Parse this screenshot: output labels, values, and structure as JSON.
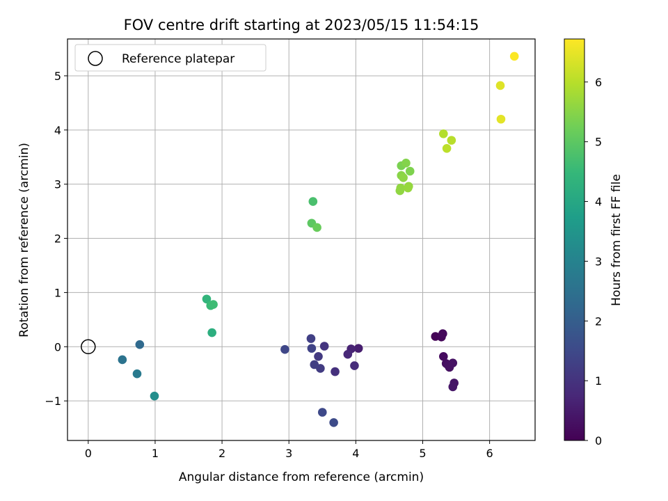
{
  "chart_data": {
    "type": "scatter",
    "title": "FOV centre drift starting at 2023/05/15 11:54:15",
    "xlabel": "Angular distance from reference (arcmin)",
    "ylabel": "Rotation from reference (arcmin)",
    "xlim": [
      -0.31,
      6.68
    ],
    "ylim": [
      -1.73,
      5.68
    ],
    "xticks": [
      0,
      1,
      2,
      3,
      4,
      5,
      6
    ],
    "yticks": [
      -1,
      0,
      1,
      2,
      3,
      4,
      5
    ],
    "ytick_labels": [
      "−1",
      "0",
      "1",
      "2",
      "3",
      "4",
      "5"
    ],
    "grid": true,
    "legend": {
      "position": "top-left",
      "entries": [
        "Reference platepar"
      ]
    },
    "reference_point": {
      "x": 0,
      "y": 0
    },
    "colorbar": {
      "label": "Hours from first FF file",
      "range": [
        0,
        6.72
      ],
      "ticks": [
        0,
        1,
        2,
        3,
        4,
        5,
        6
      ],
      "colormap": "viridis"
    },
    "points": [
      {
        "x": 5.19,
        "y": 0.19,
        "hours": 0.05
      },
      {
        "x": 5.28,
        "y": 0.18,
        "hours": 0.1
      },
      {
        "x": 5.3,
        "y": 0.24,
        "hours": 0.15
      },
      {
        "x": 5.31,
        "y": -0.18,
        "hours": 0.2
      },
      {
        "x": 5.35,
        "y": -0.31,
        "hours": 0.25
      },
      {
        "x": 5.38,
        "y": -0.34,
        "hours": 0.28
      },
      {
        "x": 5.4,
        "y": -0.38,
        "hours": 0.3
      },
      {
        "x": 5.45,
        "y": -0.3,
        "hours": 0.33
      },
      {
        "x": 5.47,
        "y": -0.67,
        "hours": 0.38
      },
      {
        "x": 5.45,
        "y": -0.74,
        "hours": 0.4
      },
      {
        "x": 4.04,
        "y": -0.03,
        "hours": 0.55
      },
      {
        "x": 3.93,
        "y": -0.04,
        "hours": 0.65
      },
      {
        "x": 3.88,
        "y": -0.14,
        "hours": 0.75
      },
      {
        "x": 3.98,
        "y": -0.35,
        "hours": 0.85
      },
      {
        "x": 3.69,
        "y": -0.46,
        "hours": 0.95
      },
      {
        "x": 3.53,
        "y": 0.01,
        "hours": 1.05
      },
      {
        "x": 3.44,
        "y": -0.18,
        "hours": 1.15
      },
      {
        "x": 3.47,
        "y": -0.4,
        "hours": 1.2
      },
      {
        "x": 3.38,
        "y": -0.33,
        "hours": 1.25
      },
      {
        "x": 3.33,
        "y": 0.15,
        "hours": 1.3
      },
      {
        "x": 3.34,
        "y": -0.03,
        "hours": 1.35
      },
      {
        "x": 2.94,
        "y": -0.05,
        "hours": 1.45
      },
      {
        "x": 3.5,
        "y": -1.21,
        "hours": 1.5
      },
      {
        "x": 3.67,
        "y": -1.4,
        "hours": 1.55
      },
      {
        "x": 0.77,
        "y": 0.04,
        "hours": 2.3
      },
      {
        "x": 0.51,
        "y": -0.24,
        "hours": 2.55
      },
      {
        "x": 0.73,
        "y": -0.5,
        "hours": 2.75
      },
      {
        "x": 0.99,
        "y": -0.91,
        "hours": 3.3
      },
      {
        "x": 1.85,
        "y": 0.26,
        "hours": 4.2
      },
      {
        "x": 1.77,
        "y": 0.88,
        "hours": 4.4
      },
      {
        "x": 1.83,
        "y": 0.76,
        "hours": 4.55
      },
      {
        "x": 1.87,
        "y": 0.78,
        "hours": 4.6
      },
      {
        "x": 3.36,
        "y": 2.68,
        "hours": 4.75
      },
      {
        "x": 3.34,
        "y": 2.28,
        "hours": 5.0
      },
      {
        "x": 3.42,
        "y": 2.2,
        "hours": 5.15
      },
      {
        "x": 4.68,
        "y": 3.34,
        "hours": 5.35
      },
      {
        "x": 4.81,
        "y": 3.24,
        "hours": 5.4
      },
      {
        "x": 4.75,
        "y": 3.39,
        "hours": 5.45
      },
      {
        "x": 4.68,
        "y": 3.16,
        "hours": 5.5
      },
      {
        "x": 4.71,
        "y": 3.12,
        "hours": 5.55
      },
      {
        "x": 4.66,
        "y": 2.88,
        "hours": 5.58
      },
      {
        "x": 4.67,
        "y": 2.93,
        "hours": 5.6
      },
      {
        "x": 4.79,
        "y": 2.96,
        "hours": 5.62
      },
      {
        "x": 4.78,
        "y": 2.93,
        "hours": 5.65
      },
      {
        "x": 5.31,
        "y": 3.93,
        "hours": 5.95
      },
      {
        "x": 5.43,
        "y": 3.81,
        "hours": 6.0
      },
      {
        "x": 5.36,
        "y": 3.66,
        "hours": 6.05
      },
      {
        "x": 6.16,
        "y": 4.82,
        "hours": 6.4
      },
      {
        "x": 6.17,
        "y": 4.2,
        "hours": 6.45
      },
      {
        "x": 6.37,
        "y": 5.36,
        "hours": 6.7
      }
    ]
  }
}
